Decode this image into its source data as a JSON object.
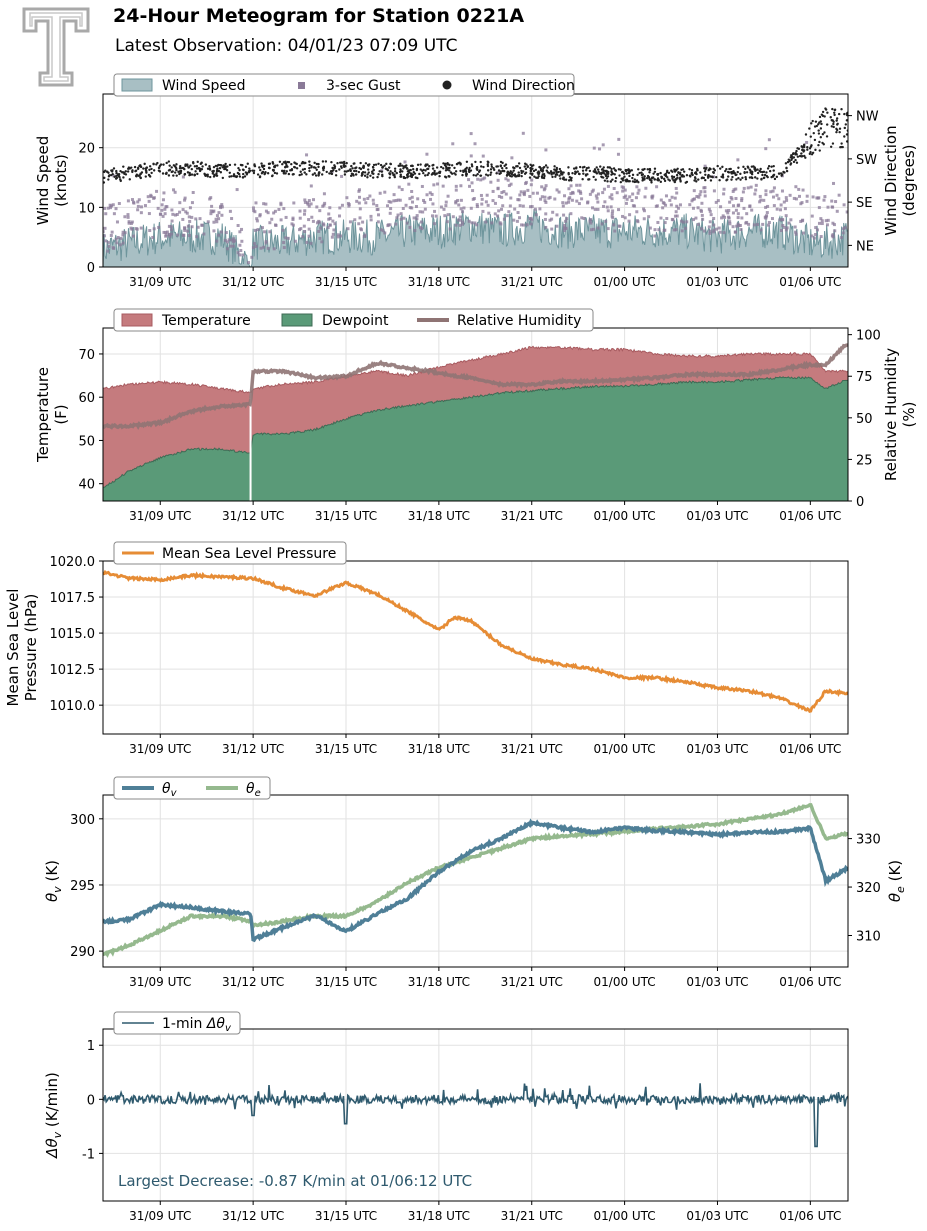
{
  "header": {
    "title": "24-Hour Meteogram for Station 0221A",
    "subtitle": "Latest Observation: 04/01/23 07:09 UTC",
    "logo_icon": "texas-tech-double-t-logo-icon"
  },
  "colors": {
    "wind_speed": "#a8bfc4",
    "wind_speed_line": "#6e959c",
    "gust": "#8a7a98",
    "direction": "#222222",
    "temperature": "#c57b7e",
    "temperature_edge": "#a85b60",
    "dewpoint": "#5a9a78",
    "dewpoint_edge": "#3f6b55",
    "humidity": "#8f7474",
    "humidity_dark": "#6e3b3f",
    "pressure": "#e68c35",
    "theta_v": "#4f7f97",
    "theta_e": "#95b98e",
    "dtheta": "#2f5a6e",
    "annotation": "#2f5a6e",
    "grid": "#e2e2e2",
    "logo": "#a9a9a9"
  },
  "time_ticks": [
    "31/09 UTC",
    "31/12 UTC",
    "31/15 UTC",
    "31/18 UTC",
    "31/21 UTC",
    "01/00 UTC",
    "01/03 UTC",
    "01/06 UTC"
  ],
  "chart_data": [
    {
      "type": "area",
      "id": "wind",
      "ylabel": "Wind Speed\n(knots)",
      "y2label": "Wind Direction\n(degrees)",
      "ylim": [
        0,
        29
      ],
      "yticks": [
        0,
        10,
        20
      ],
      "y2lim": [
        0,
        360
      ],
      "y2ticks": [
        {
          "value": 45,
          "label": "NE"
        },
        {
          "value": 135,
          "label": "SE"
        },
        {
          "value": 225,
          "label": "SW"
        },
        {
          "value": 315,
          "label": "NW"
        }
      ],
      "legend": [
        "Wind Speed",
        "3-sec Gust",
        "Wind Direction"
      ],
      "legend_placement": "top-left",
      "grid": true,
      "x": [
        "31/07:10",
        "31/08",
        "31/09",
        "31/10",
        "31/11",
        "31/11:55",
        "31/12",
        "31/13",
        "31/14",
        "31/15",
        "31/16",
        "31/17",
        "31/18",
        "31/19",
        "31/20",
        "31/21",
        "31/22",
        "31/23",
        "01/00",
        "01/01",
        "01/02",
        "01/03",
        "01/04",
        "01/05",
        "01/06",
        "01/06:30",
        "01/07:09"
      ],
      "series": [
        {
          "name": "Wind Speed",
          "values": [
            3,
            4,
            5,
            5,
            5,
            0,
            4,
            4,
            5,
            5,
            5,
            6,
            6,
            7,
            6,
            7,
            6,
            6,
            6,
            6,
            6,
            5,
            6,
            6,
            4,
            4,
            5
          ]
        },
        {
          "name": "3-sec Gust",
          "values": [
            6,
            8,
            9,
            9,
            8,
            0,
            7,
            7,
            8,
            9,
            9,
            10,
            10,
            11,
            11,
            11,
            10,
            10,
            10,
            9,
            10,
            9,
            10,
            10,
            9,
            8,
            9
          ]
        },
        {
          "name": "Wind Direction",
          "values": [
            190,
            195,
            205,
            205,
            200,
            200,
            200,
            205,
            205,
            205,
            200,
            200,
            200,
            205,
            205,
            200,
            195,
            195,
            190,
            190,
            190,
            195,
            195,
            195,
            260,
            300,
            280
          ]
        }
      ]
    },
    {
      "type": "area",
      "id": "thermo",
      "ylabel": "Temperature\n(F)",
      "y2label": "Relative Humidity\n(%)",
      "ylim": [
        36,
        76
      ],
      "yticks": [
        40,
        50,
        60,
        70
      ],
      "y2lim": [
        0,
        104
      ],
      "y2ticks": [
        0,
        25,
        50,
        75,
        100
      ],
      "legend": [
        "Temperature",
        "Dewpoint",
        "Relative Humidity"
      ],
      "legend_placement": "top-left",
      "grid": true,
      "x": [
        "31/07:10",
        "31/08",
        "31/09",
        "31/10",
        "31/11",
        "31/11:55",
        "31/12",
        "31/13",
        "31/14",
        "31/15",
        "31/16",
        "31/17",
        "31/18",
        "31/19",
        "31/20",
        "31/21",
        "31/22",
        "31/23",
        "01/00",
        "01/01",
        "01/02",
        "01/03",
        "01/04",
        "01/05",
        "01/06",
        "01/06:30",
        "01/07:09"
      ],
      "series": [
        {
          "name": "Temperature",
          "values": [
            62,
            63,
            63.5,
            63,
            62,
            61,
            62,
            63,
            63.5,
            65,
            66,
            65,
            67,
            68.5,
            70,
            71.5,
            71.5,
            71,
            71,
            70,
            69.5,
            69.5,
            70,
            70,
            70,
            66,
            66
          ]
        },
        {
          "name": "Dewpoint",
          "values": [
            39,
            43,
            46,
            48,
            48,
            47,
            51.5,
            51.5,
            52.5,
            55,
            57,
            58,
            59,
            60,
            61,
            61.5,
            62,
            62.5,
            62.5,
            63,
            63.5,
            63.5,
            64,
            64.5,
            64.5,
            62,
            64
          ]
        },
        {
          "name": "Relative Humidity",
          "values": [
            45,
            45,
            47,
            54,
            57,
            58,
            78,
            78,
            74,
            75,
            83,
            80,
            77,
            74,
            70,
            70,
            72,
            72,
            73,
            74,
            76,
            76,
            76,
            79,
            82,
            82,
            94
          ]
        }
      ]
    },
    {
      "type": "line",
      "id": "pressure",
      "ylabel": "Mean Sea Level\nPressure (hPa)",
      "ylim": [
        1008,
        1020
      ],
      "yticks": [
        1010.0,
        1012.5,
        1015.0,
        1017.5,
        1020.0
      ],
      "ytick_labels": [
        "1010.0",
        "1012.5",
        "1015.0",
        "1017.5",
        "1020.0"
      ],
      "legend": [
        "Mean Sea Level Pressure"
      ],
      "legend_placement": "top-left",
      "grid": true,
      "x": [
        "31/07:10",
        "31/08",
        "31/09",
        "31/10",
        "31/11",
        "31/12",
        "31/13",
        "31/14",
        "31/15",
        "31/16",
        "31/17",
        "31/18",
        "31/18:30",
        "31/19",
        "31/20",
        "31/21",
        "31/22",
        "31/23",
        "01/00",
        "01/01",
        "01/02",
        "01/03",
        "01/04",
        "01/05",
        "01/06",
        "01/06:30",
        "01/07:09"
      ],
      "series": [
        {
          "name": "Mean Sea Level Pressure",
          "values": [
            1019.2,
            1018.8,
            1018.7,
            1019.0,
            1018.9,
            1018.8,
            1018.1,
            1017.6,
            1018.5,
            1017.7,
            1016.5,
            1015.2,
            1016.1,
            1015.9,
            1014.2,
            1013.2,
            1012.8,
            1012.5,
            1011.9,
            1011.9,
            1011.6,
            1011.2,
            1011.0,
            1010.5,
            1009.6,
            1011.0,
            1010.8
          ]
        }
      ]
    },
    {
      "type": "line",
      "id": "theta",
      "ylabel": "θv (K)",
      "y2label": "θe (K)",
      "ylim": [
        288.8,
        301.8
      ],
      "yticks": [
        290,
        295,
        300
      ],
      "y2lim": [
        303.5,
        339
      ],
      "y2ticks": [
        310,
        320,
        330
      ],
      "legend": [
        "θv",
        "θe"
      ],
      "legend_placement": "top-left",
      "grid": true,
      "x": [
        "31/07:10",
        "31/08",
        "31/09",
        "31/10",
        "31/11",
        "31/11:55",
        "31/12",
        "31/13",
        "31/14",
        "31/15",
        "31/16",
        "31/17",
        "31/18",
        "31/19",
        "31/20",
        "31/21",
        "31/22",
        "31/23",
        "01/00",
        "01/01",
        "01/02",
        "01/03",
        "01/04",
        "01/05",
        "01/06",
        "01/06:30",
        "01/07:09"
      ],
      "series": [
        {
          "name": "θv",
          "values": [
            292.2,
            292.4,
            293.5,
            293.3,
            293.0,
            292.8,
            290.9,
            291.8,
            292.7,
            291.5,
            292.8,
            294.0,
            296.0,
            297.5,
            298.5,
            299.7,
            299.3,
            299.0,
            299.3,
            299.1,
            299.0,
            298.8,
            299.0,
            299.0,
            299.3,
            295.3,
            296.2
          ]
        },
        {
          "name": "θe",
          "values": [
            306,
            308,
            311,
            314,
            314,
            313,
            312,
            313,
            314,
            314,
            317,
            321,
            324,
            326,
            328,
            330,
            330.5,
            331,
            331.5,
            332,
            332.5,
            333,
            334,
            335,
            337,
            330,
            331
          ]
        }
      ]
    },
    {
      "type": "line",
      "id": "dtheta",
      "ylabel": "Δθv (K/min)",
      "ylim": [
        -1.88,
        1.3
      ],
      "yticks": [
        -1,
        0,
        1
      ],
      "legend": [
        "1-min Δθv"
      ],
      "legend_placement": "top-left",
      "annotation": "Largest Decrease: -0.87 K/min at 01/06:12 UTC",
      "grid": true,
      "x": [
        "31/07:10",
        "31/08",
        "31/09",
        "31/10",
        "31/11",
        "31/11:55",
        "31/12",
        "31/13",
        "31/14",
        "31/15",
        "31/16",
        "31/17",
        "31/18",
        "31/19",
        "31/20",
        "31/21",
        "31/22",
        "31/23",
        "01/00",
        "01/01",
        "01/02",
        "01/03",
        "01/04",
        "01/05",
        "01/06",
        "01/06:12",
        "01/06:30",
        "01/07:09"
      ],
      "series": [
        {
          "name": "1-min Δθv",
          "values": [
            0.05,
            0.02,
            0.1,
            -0.05,
            0.08,
            0,
            -0.3,
            0.06,
            0.08,
            -0.45,
            0.12,
            -0.1,
            0.3,
            0.1,
            -0.1,
            0.25,
            0.03,
            0.04,
            0.02,
            -0.02,
            0.03,
            0.02,
            0.01,
            0.03,
            0.2,
            -0.87,
            0.1,
            -0.05
          ]
        }
      ]
    }
  ]
}
